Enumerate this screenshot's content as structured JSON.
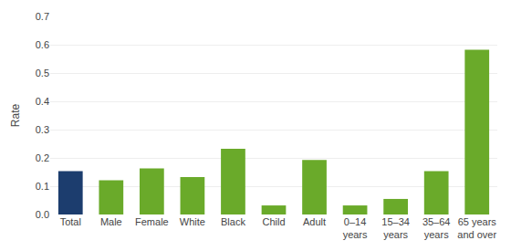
{
  "chart_data": {
    "type": "bar",
    "categories": [
      "Total",
      "Male",
      "Female",
      "White",
      "Black",
      "Child",
      "Adult",
      "0–14\nyears",
      "15–34\nyears",
      "35–64\nyears",
      "65 years\nand over"
    ],
    "values": [
      0.153,
      0.121,
      0.163,
      0.132,
      0.232,
      0.032,
      0.193,
      0.032,
      0.055,
      0.153,
      0.582
    ],
    "colors": [
      "#1c3d6e",
      "#6aaa2a",
      "#6aaa2a",
      "#6aaa2a",
      "#6aaa2a",
      "#6aaa2a",
      "#6aaa2a",
      "#6aaa2a",
      "#6aaa2a",
      "#6aaa2a",
      "#6aaa2a"
    ],
    "ylabel": "Rate",
    "ylim": [
      0,
      0.7
    ],
    "yticks": [
      {
        "value": 0,
        "label": "0.0"
      },
      0.1,
      0.2,
      0.3,
      0.4,
      0.5,
      0.6,
      0.7
    ],
    "grid": true
  }
}
